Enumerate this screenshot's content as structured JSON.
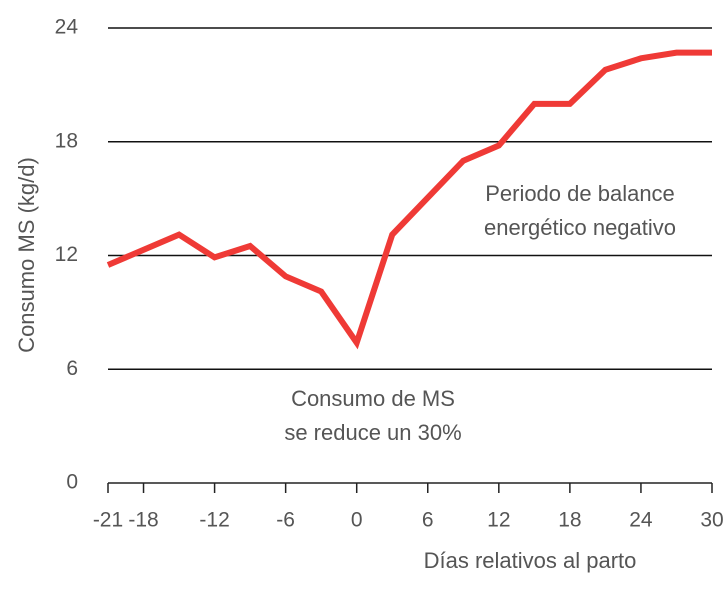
{
  "chart_data": {
    "type": "line",
    "x": [
      -21,
      -15,
      -12,
      -9,
      -6,
      -3,
      0,
      3,
      9,
      12,
      15,
      18,
      21,
      24,
      27,
      30
    ],
    "series": [
      {
        "name": "Consumo MS",
        "color": "#ef3a36",
        "values": [
          11.5,
          13.1,
          11.9,
          12.5,
          10.9,
          10.1,
          7.4,
          13.1,
          17.0,
          17.8,
          20.0,
          20.0,
          21.8,
          22.4,
          22.7,
          22.7
        ]
      }
    ],
    "xlim": [
      -21,
      30
    ],
    "xticks": [
      -21,
      -18,
      -12,
      -6,
      0,
      6,
      12,
      18,
      24,
      30
    ],
    "ylim": [
      0,
      24
    ],
    "yticks": [
      0,
      6,
      12,
      18,
      24
    ],
    "grid": true,
    "xlabel": "Días relativos al parto",
    "ylabel": "Consumo MS (kg/d)",
    "annotations": [
      [
        "Periodo de balance",
        "energético negativo"
      ],
      [
        "Consumo de MS",
        "se reduce un 30%"
      ]
    ]
  }
}
